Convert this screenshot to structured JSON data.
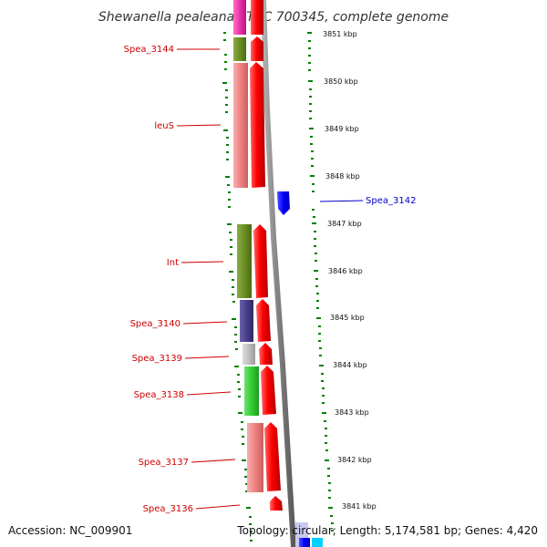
{
  "title": "Shewanella pealeana ATCC 700345, complete genome",
  "footer": {
    "accession": "Accession: NC_009901",
    "topology": "Topology: circular; Length: 5,174,581 bp; Genes: 4,420"
  },
  "ruler": [
    "3851 kbp",
    "3850 kbp",
    "3849 kbp",
    "3848 kbp",
    "3847 kbp",
    "3846 kbp",
    "3845 kbp",
    "3844 kbp",
    "3843 kbp",
    "3842 kbp",
    "3841 kbp"
  ],
  "genes": [
    {
      "label": "Spea_3144",
      "color": "#6b8e23"
    },
    {
      "label": "leuS",
      "color": "#f08080"
    },
    {
      "label": "Spea_3142",
      "color": "#0000ff"
    },
    {
      "label": "Int",
      "color": "#6b8e23"
    },
    {
      "label": "Spea_3140",
      "color": "#483d8b"
    },
    {
      "label": "Spea_3139",
      "color": "#bebebe"
    },
    {
      "label": "Spea_3138",
      "color": "#32cd32"
    },
    {
      "label": "Spea_3137",
      "color": "#f08080"
    },
    {
      "label": "Spea_3136",
      "color": "#ff0000"
    }
  ],
  "colors": {
    "cds": "#ff0000",
    "label_red": "#d00000",
    "label_blue": "#0000c8",
    "backbone": "#808080",
    "tick": "#008000"
  }
}
